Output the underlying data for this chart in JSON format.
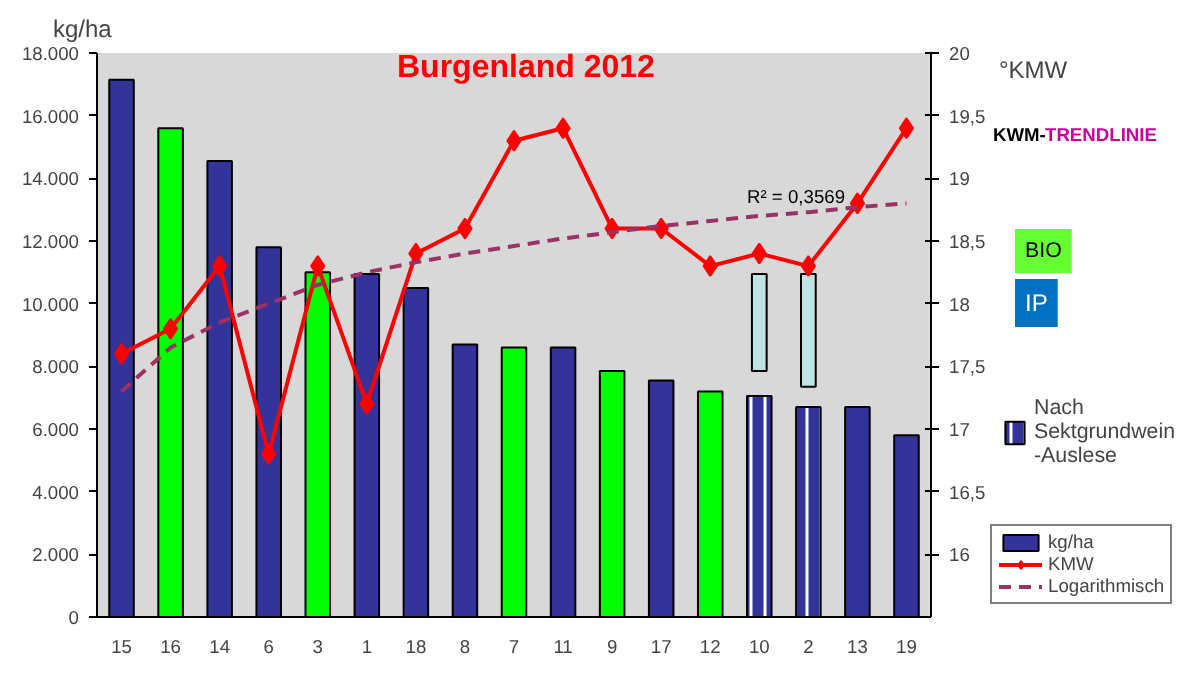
{
  "chart_data": {
    "type": "bar",
    "title": "Burgenland 2012",
    "ylabel": "kg/ha",
    "y2label": "°KMW",
    "categories": [
      "15",
      "16",
      "14",
      "6",
      "3",
      "1",
      "18",
      "8",
      "7",
      "11",
      "9",
      "17",
      "12",
      "10",
      "2",
      "13",
      "19"
    ],
    "series": [
      {
        "name": "kg/ha",
        "colors": [
          "#333399",
          "#00ff00",
          "#333399",
          "#333399",
          "#00ff00",
          "#333399",
          "#333399",
          "#333399",
          "#00ff00",
          "#333399",
          "#00ff00",
          "#333399",
          "#00ff00",
          null,
          null,
          "#333399",
          "#333399"
        ],
        "values": [
          17150,
          15600,
          14550,
          11800,
          11000,
          10950,
          10500,
          8700,
          8600,
          8600,
          7850,
          7550,
          7200,
          null,
          null,
          6700,
          5800
        ]
      },
      {
        "name": "Nach Sektgrundwein -Auslese",
        "color": "#333399",
        "values": [
          null,
          null,
          null,
          null,
          null,
          null,
          null,
          null,
          null,
          null,
          null,
          null,
          null,
          7050,
          6700,
          null,
          null
        ]
      },
      {
        "color": "#c0e4e4",
        "base": [
          null,
          null,
          null,
          null,
          null,
          null,
          null,
          null,
          null,
          null,
          null,
          null,
          null,
          7850,
          7350,
          null,
          null
        ],
        "values": [
          null,
          null,
          null,
          null,
          null,
          null,
          null,
          null,
          null,
          null,
          null,
          null,
          null,
          3100,
          3600,
          null,
          null
        ]
      },
      {
        "type": "line",
        "name": "KMW",
        "axis": "y2",
        "color": "#ff0000",
        "marker": "diamond",
        "values": [
          17.6,
          17.8,
          18.3,
          16.8,
          18.3,
          17.2,
          18.4,
          18.6,
          19.3,
          19.4,
          18.6,
          18.6,
          18.3,
          18.4,
          18.3,
          18.8,
          19.4
        ]
      },
      {
        "type": "line",
        "name": "Logarithmisch",
        "axis": "y2",
        "color": "#993366",
        "line_style": "dashed",
        "values": [
          17.3,
          17.65,
          17.85,
          18.0,
          18.15,
          18.25,
          18.33,
          18.4,
          18.46,
          18.52,
          18.57,
          18.62,
          18.66,
          18.7,
          18.73,
          18.77,
          18.8
        ]
      }
    ],
    "ylim": [
      0,
      18000
    ],
    "yticks": [
      {
        "value": 0,
        "label": "0"
      },
      {
        "value": 2000,
        "label": "2.000"
      },
      {
        "value": 4000,
        "label": "4.000"
      },
      {
        "value": 6000,
        "label": "6.000"
      },
      {
        "value": 8000,
        "label": "8.000"
      },
      {
        "value": 10000,
        "label": "10.000"
      },
      {
        "value": 12000,
        "label": "12.000"
      },
      {
        "value": 14000,
        "label": "14.000"
      },
      {
        "value": 16000,
        "label": "16.000"
      },
      {
        "value": 18000,
        "label": "18.000"
      }
    ],
    "y2lim": [
      15.5,
      20
    ],
    "y2ticks": [
      16,
      {
        "value": 16.5,
        "label": "16,5"
      },
      17,
      {
        "value": 17.5,
        "label": "17,5"
      },
      18,
      {
        "value": 18.5,
        "label": "18,5"
      },
      19,
      {
        "value": 19.5,
        "label": "19,5"
      },
      20
    ],
    "annotations": [
      "R² = 0,3569",
      "KWM-",
      "TRENDLINIE",
      "BIO",
      "IP"
    ],
    "legend": "bottom right",
    "grid": false
  }
}
